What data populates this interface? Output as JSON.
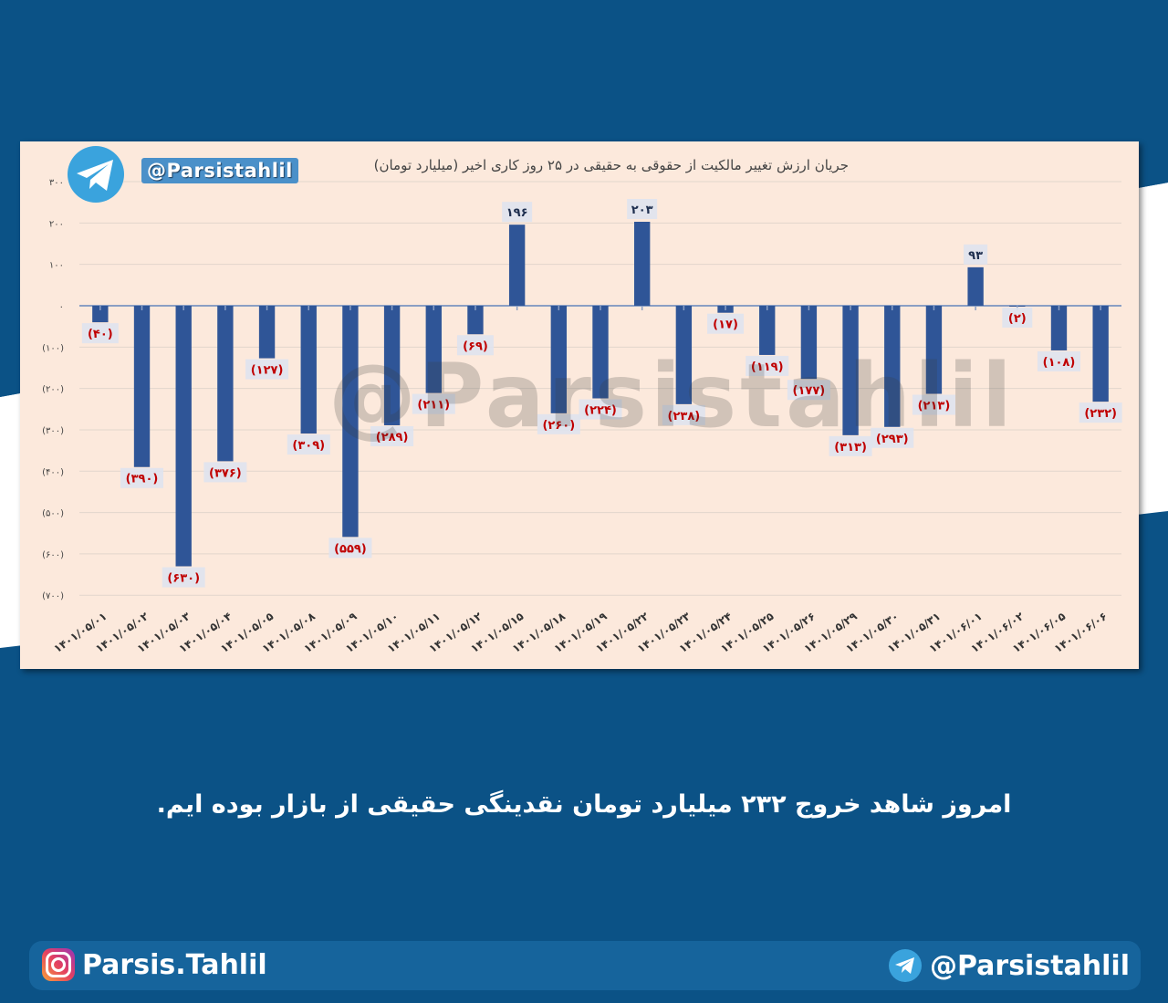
{
  "chart_data": {
    "type": "bar",
    "title": "جریان ارزش تغییر مالکیت از حقوقی به حقیقی در ۲۵ روز کاری اخیر (میلیارد تومان)",
    "xlabel": "",
    "ylabel": "",
    "ylim": [
      -700,
      300
    ],
    "yticks": [
      300,
      200,
      100,
      0,
      -100,
      -200,
      -300,
      -400,
      -500,
      -600,
      -700
    ],
    "ytick_labels": [
      "۳۰۰",
      "۲۰۰",
      "۱۰۰",
      "۰",
      "(۱۰۰)",
      "(۲۰۰)",
      "(۳۰۰)",
      "(۴۰۰)",
      "(۵۰۰)",
      "(۶۰۰)",
      "(۷۰۰)"
    ],
    "grid": true,
    "categories": [
      "۱۴۰۱/۰۵/۰۱",
      "۱۴۰۱/۰۵/۰۲",
      "۱۴۰۱/۰۵/۰۳",
      "۱۴۰۱/۰۵/۰۴",
      "۱۴۰۱/۰۵/۰۵",
      "۱۴۰۱/۰۵/۰۸",
      "۱۴۰۱/۰۵/۰۹",
      "۱۴۰۱/۰۵/۱۰",
      "۱۴۰۱/۰۵/۱۱",
      "۱۴۰۱/۰۵/۱۲",
      "۱۴۰۱/۰۵/۱۵",
      "۱۴۰۱/۰۵/۱۸",
      "۱۴۰۱/۰۵/۱۹",
      "۱۴۰۱/۰۵/۲۲",
      "۱۴۰۱/۰۵/۲۳",
      "۱۴۰۱/۰۵/۲۴",
      "۱۴۰۱/۰۵/۲۵",
      "۱۴۰۱/۰۵/۲۶",
      "۱۴۰۱/۰۵/۲۹",
      "۱۴۰۱/۰۵/۳۰",
      "۱۴۰۱/۰۵/۳۱",
      "۱۴۰۱/۰۶/۰۱",
      "۱۴۰۱/۰۶/۰۲",
      "۱۴۰۱/۰۶/۰۵",
      "۱۴۰۱/۰۶/۰۶"
    ],
    "values": [
      -40,
      -390,
      -630,
      -376,
      -127,
      -309,
      -559,
      -289,
      -211,
      -69,
      196,
      -260,
      -224,
      203,
      -238,
      -17,
      -119,
      -177,
      -313,
      -293,
      -213,
      93,
      -2,
      -108,
      -232
    ],
    "data_labels": [
      "(۴۰)",
      "(۳۹۰)",
      "(۶۳۰)",
      "(۳۷۶)",
      "(۱۲۷)",
      "(۳۰۹)",
      "(۵۵۹)",
      "(۲۸۹)",
      "(۲۱۱)",
      "(۶۹)",
      "۱۹۶",
      "(۲۶۰)",
      "(۲۲۴)",
      "۲۰۳",
      "(۲۳۸)",
      "(۱۷)",
      "(۱۱۹)",
      "(۱۷۷)",
      "(۳۱۳)",
      "(۲۹۳)",
      "(۲۱۳)",
      "۹۳",
      "(۲)",
      "(۱۰۸)",
      "(۲۳۲)"
    ],
    "bar_color": "#2f5597",
    "positive_label_color": "#1f2f4f",
    "negative_label_color": "#c00000"
  },
  "header": {
    "handle": "@Parsistahlil",
    "watermark": "@Parsistahlil"
  },
  "caption": "امروز شاهد خروج ۲۳۲ میلیارد تومان نقدینگی حقیقی از بازار بوده ایم.",
  "footer": {
    "instagram": "Parsis.Tahlil",
    "telegram": "@Parsistahlil"
  },
  "icons": {
    "header_logo": "telegram-icon",
    "footer_left": "instagram-icon",
    "footer_right": "telegram-icon"
  }
}
